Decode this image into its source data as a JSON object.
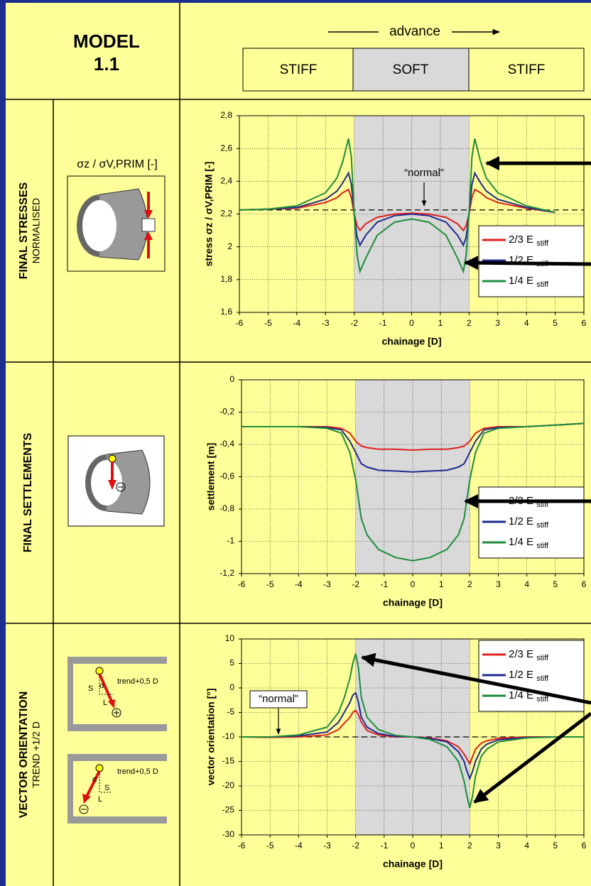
{
  "header": {
    "model": "MODEL",
    "model_id": "1.1",
    "advance": "advance",
    "zones": [
      "STIFF",
      "SOFT",
      "STIFF"
    ]
  },
  "rows": [
    {
      "title": "FINAL STRESSES",
      "subtitle": "NORMALISED",
      "icon_label": "σz / σV,PRIM [-]"
    },
    {
      "title": "FINAL SETTLEMENTS"
    },
    {
      "title": "VECTOR ORIENTATION",
      "subtitle": "TREND +1/2 D",
      "icon_labels": [
        "trend+0,5 D",
        "S",
        "α",
        "L",
        "trend+0,5 D",
        "α",
        "S",
        "L"
      ]
    }
  ],
  "chart_data": [
    {
      "type": "line",
      "xlabel": "chainage [D]",
      "ylabel": "stress  σz / σV,PRIM [-]",
      "xlim": [
        -6,
        6
      ],
      "xticks": [
        -6,
        -5,
        -4,
        -3,
        -2,
        -1,
        0,
        1,
        2,
        3,
        4,
        5,
        6
      ],
      "ylim": [
        1.6,
        2.8
      ],
      "yticks": [
        {
          "value": 1.6,
          "label": "1,6"
        },
        {
          "value": 1.8,
          "label": "1,8"
        },
        2,
        {
          "value": 2.2,
          "label": "2,2"
        },
        {
          "value": 2.4,
          "label": "2,4"
        },
        {
          "value": 2.6,
          "label": "2,6"
        },
        {
          "value": 2.8,
          "label": "2,8"
        }
      ],
      "grid": true,
      "soft_zone": [
        -2,
        2
      ],
      "reference": 2.225,
      "annotation": "“normal”",
      "legend": "lower right",
      "x": [
        -6,
        -5,
        -4,
        -3,
        -2.6,
        -2.4,
        -2.2,
        -2.1,
        -2,
        -1.9,
        -1.8,
        -1.6,
        -1.2,
        -0.6,
        0,
        0.6,
        1.2,
        1.6,
        1.8,
        1.9,
        2,
        2.1,
        2.2,
        2.4,
        2.6,
        3,
        4,
        5
      ],
      "series": [
        {
          "name": "2/3 E stiff",
          "color": "#e0201b",
          "values": [
            2.225,
            2.23,
            2.235,
            2.27,
            2.3,
            2.33,
            2.35,
            2.3,
            2.2,
            2.13,
            2.1,
            2.14,
            2.18,
            2.2,
            2.205,
            2.2,
            2.18,
            2.14,
            2.1,
            2.13,
            2.2,
            2.3,
            2.35,
            2.33,
            2.3,
            2.27,
            2.235,
            2.21
          ]
        },
        {
          "name": "1/2 E stiff",
          "color": "#1f2a8c",
          "values": [
            2.225,
            2.23,
            2.24,
            2.29,
            2.34,
            2.39,
            2.45,
            2.38,
            2.2,
            2.06,
            2.01,
            2.07,
            2.15,
            2.19,
            2.2,
            2.19,
            2.15,
            2.07,
            2.01,
            2.06,
            2.2,
            2.38,
            2.45,
            2.39,
            2.34,
            2.29,
            2.24,
            2.21
          ]
        },
        {
          "name": "1/4 E stiff",
          "color": "#1e8c3a",
          "values": [
            2.225,
            2.23,
            2.25,
            2.33,
            2.42,
            2.52,
            2.66,
            2.55,
            2.2,
            1.95,
            1.85,
            1.93,
            2.07,
            2.15,
            2.17,
            2.15,
            2.07,
            1.93,
            1.85,
            1.95,
            2.2,
            2.55,
            2.66,
            2.52,
            2.42,
            2.33,
            2.25,
            2.21
          ]
        }
      ]
    },
    {
      "type": "line",
      "xlabel": "chainage [D]",
      "ylabel": "settlement [m]",
      "xlim": [
        -6,
        6
      ],
      "xticks": [
        -6,
        -5,
        -4,
        -3,
        -2,
        -1,
        0,
        1,
        2,
        3,
        4,
        5,
        6
      ],
      "ylim": [
        -1.2,
        0
      ],
      "yticks": [
        {
          "value": -1.2,
          "label": "-1,2"
        },
        -1,
        {
          "value": -0.8,
          "label": "-0,8"
        },
        {
          "value": -0.6,
          "label": "-0,6"
        },
        {
          "value": -0.4,
          "label": "-0,4"
        },
        {
          "value": -0.2,
          "label": "-0,2"
        },
        0
      ],
      "grid": true,
      "soft_zone": [
        -2,
        2
      ],
      "legend": "lower right",
      "x": [
        -6,
        -5,
        -4,
        -3,
        -2.5,
        -2.2,
        -2,
        -1.8,
        -1.6,
        -1.2,
        -0.6,
        0,
        0.6,
        1.2,
        1.6,
        1.8,
        2,
        2.2,
        2.5,
        3,
        4,
        5,
        6
      ],
      "series": [
        {
          "name": "2/3 E stiff",
          "color": "#e0201b",
          "values": [
            -0.29,
            -0.29,
            -0.29,
            -0.29,
            -0.3,
            -0.33,
            -0.38,
            -0.41,
            -0.42,
            -0.43,
            -0.43,
            -0.435,
            -0.43,
            -0.43,
            -0.42,
            -0.41,
            -0.38,
            -0.33,
            -0.3,
            -0.29,
            -0.29,
            -0.28,
            -0.27
          ]
        },
        {
          "name": "1/2 E stiff",
          "color": "#1f2a8c",
          "values": [
            -0.29,
            -0.29,
            -0.29,
            -0.295,
            -0.31,
            -0.38,
            -0.45,
            -0.52,
            -0.54,
            -0.56,
            -0.565,
            -0.57,
            -0.565,
            -0.56,
            -0.54,
            -0.52,
            -0.45,
            -0.38,
            -0.31,
            -0.295,
            -0.29,
            -0.28,
            -0.27
          ]
        },
        {
          "name": "1/4 E stiff",
          "color": "#1e8c3a",
          "values": [
            -0.29,
            -0.29,
            -0.29,
            -0.3,
            -0.33,
            -0.45,
            -0.62,
            -0.86,
            -0.96,
            -1.05,
            -1.1,
            -1.12,
            -1.1,
            -1.05,
            -0.96,
            -0.86,
            -0.62,
            -0.45,
            -0.33,
            -0.3,
            -0.29,
            -0.28,
            -0.27
          ]
        }
      ]
    },
    {
      "type": "line",
      "xlabel": "chainage [D]",
      "ylabel": "vector orientation [°]",
      "xlim": [
        -6,
        6
      ],
      "xticks": [
        -6,
        -5,
        -4,
        -3,
        -2,
        -1,
        0,
        1,
        2,
        3,
        4,
        5,
        6
      ],
      "ylim": [
        -30,
        10
      ],
      "yticks": [
        -30,
        -25,
        -20,
        -15,
        -10,
        -5,
        0,
        5,
        10
      ],
      "grid": true,
      "soft_zone": [
        -2,
        2
      ],
      "reference": -10,
      "annotation": "“normal”",
      "legend": "upper right",
      "x": [
        -6,
        -5,
        -4,
        -3,
        -2.6,
        -2.4,
        -2.2,
        -2.1,
        -2,
        -1.9,
        -1.8,
        -1.6,
        -1.2,
        -0.6,
        0,
        0.6,
        1.2,
        1.6,
        1.8,
        1.9,
        2,
        2.1,
        2.2,
        2.4,
        2.6,
        3,
        4,
        5,
        6
      ],
      "series": [
        {
          "name": "2/3 E stiff",
          "color": "#e0201b",
          "values": [
            -10,
            -10.1,
            -10,
            -9.6,
            -8.5,
            -7.2,
            -6,
            -5,
            -4.6,
            -5.5,
            -7,
            -8.7,
            -9.6,
            -10,
            -10,
            -10.2,
            -10.8,
            -12,
            -13.5,
            -14.5,
            -15.5,
            -14,
            -12.5,
            -11.3,
            -10.8,
            -10.3,
            -10,
            -10,
            -10
          ]
        },
        {
          "name": "1/2 E stiff",
          "color": "#1f2a8c",
          "values": [
            -10,
            -10,
            -9.8,
            -9,
            -7,
            -5,
            -3,
            -1.5,
            -1,
            -3,
            -6,
            -8,
            -9.3,
            -9.9,
            -10,
            -10.3,
            -11,
            -13,
            -15,
            -17,
            -18.5,
            -17,
            -15,
            -12.5,
            -11.5,
            -10.6,
            -10.1,
            -10,
            -10
          ]
        },
        {
          "name": "1/4 E stiff",
          "color": "#1e8c3a",
          "values": [
            -10,
            -10,
            -9.6,
            -8,
            -5,
            -2,
            2,
            5,
            7,
            4,
            -2,
            -6,
            -8.5,
            -9.7,
            -10,
            -10.5,
            -12,
            -15,
            -19,
            -22,
            -24.5,
            -22,
            -18,
            -14,
            -12.5,
            -11,
            -10.2,
            -10,
            -10
          ]
        }
      ]
    }
  ]
}
